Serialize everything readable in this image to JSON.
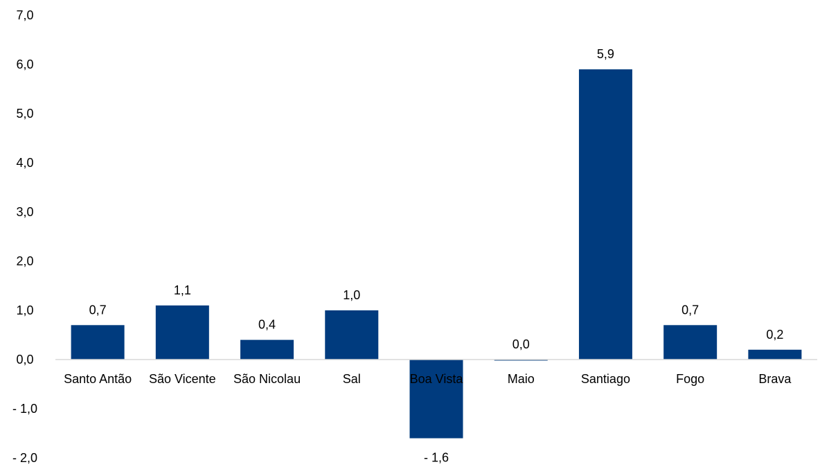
{
  "chart_data": {
    "type": "bar",
    "categories": [
      "Santo Antão",
      "São Vicente",
      "São Nicolau",
      "Sal",
      "Boa Vista",
      "Maio",
      "Santiago",
      "Fogo",
      "Brava"
    ],
    "values": [
      0.7,
      1.1,
      0.4,
      1.0,
      -1.6,
      0.0,
      5.9,
      0.7,
      0.2
    ],
    "value_labels": [
      "0,7",
      "1,1",
      "0,4",
      "1,0",
      "- 1,6",
      "0,0",
      "5,9",
      "0,7",
      "0,2"
    ],
    "ylim": [
      -2.0,
      7.0
    ],
    "yticks": [
      -2.0,
      -1.0,
      0.0,
      1.0,
      2.0,
      3.0,
      4.0,
      5.0,
      6.0,
      7.0
    ],
    "ytick_labels": [
      "- 2,0",
      "- 1,0",
      "0,0",
      "1,0",
      "2,0",
      "3,0",
      "4,0",
      "5,0",
      "6,0",
      "7,0"
    ],
    "grid": false,
    "legend": "none",
    "bar_color": "#003B7E",
    "axis_color": "#D9D9D9"
  }
}
